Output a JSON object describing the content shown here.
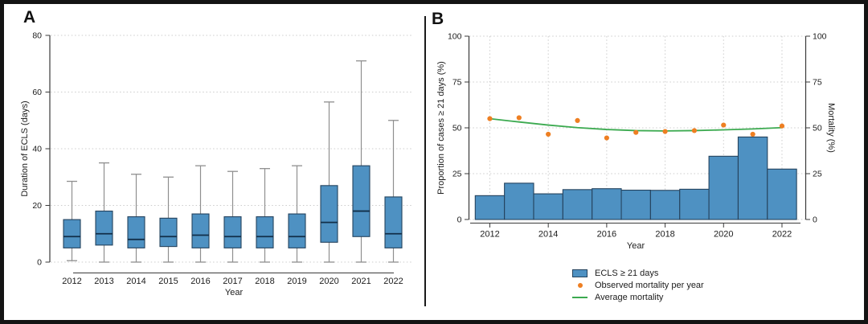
{
  "panels": {
    "a_label": "A",
    "b_label": "B"
  },
  "colors": {
    "bar_fill": "#4e91c2",
    "box_border": "#25435e",
    "median_line": "#122f49",
    "whisker_gray": "#8f8f8f",
    "grid_gray": "#cccccc",
    "axis_dark": "#3a3a3a",
    "text_dark": "#1c1c1c",
    "scatter_orange": "#ee7f22",
    "line_green": "#3caa50",
    "border_black": "#141414"
  },
  "chart_data": [
    {
      "id": "A",
      "type": "boxplot",
      "xlabel": "Year",
      "ylabel": "Duration of ECLS (days)",
      "ylim": [
        0,
        80
      ],
      "yticks": [
        0,
        20,
        40,
        60,
        80
      ],
      "grid": "horizontal-dotted",
      "categories": [
        2012,
        2013,
        2014,
        2015,
        2016,
        2017,
        2018,
        2019,
        2020,
        2021,
        2022
      ],
      "series": [
        {
          "name": "Duration of ECLS (days)",
          "boxes": [
            {
              "year": 2012,
              "low": 0.5,
              "q1": 5,
              "median": 9,
              "q3": 15,
              "high": 28.5
            },
            {
              "year": 2013,
              "low": 0,
              "q1": 6,
              "median": 10,
              "q3": 18,
              "high": 35
            },
            {
              "year": 2014,
              "low": 0,
              "q1": 5,
              "median": 8,
              "q3": 16,
              "high": 31
            },
            {
              "year": 2015,
              "low": 0,
              "q1": 5.5,
              "median": 9,
              "q3": 15.5,
              "high": 30
            },
            {
              "year": 2016,
              "low": 0,
              "q1": 5,
              "median": 9.5,
              "q3": 17,
              "high": 34
            },
            {
              "year": 2017,
              "low": 0,
              "q1": 5,
              "median": 9,
              "q3": 16,
              "high": 32
            },
            {
              "year": 2018,
              "low": 0,
              "q1": 5,
              "median": 9,
              "q3": 16,
              "high": 33
            },
            {
              "year": 2019,
              "low": 0,
              "q1": 5,
              "median": 9,
              "q3": 17,
              "high": 34
            },
            {
              "year": 2020,
              "low": 0,
              "q1": 7,
              "median": 14,
              "q3": 27,
              "high": 56.5
            },
            {
              "year": 2021,
              "low": 0,
              "q1": 9,
              "median": 18,
              "q3": 34,
              "high": 71
            },
            {
              "year": 2022,
              "low": 0,
              "q1": 5,
              "median": 10,
              "q3": 23,
              "high": 50
            }
          ]
        }
      ]
    },
    {
      "id": "B",
      "type": "bar+scatter+line",
      "xlabel": "Year",
      "ylabel_left": "Proportion of cases ≥ 21 days (%)",
      "ylabel_right": "Mortality (%)",
      "ylim": [
        0,
        100
      ],
      "yticks": [
        0,
        25,
        50,
        75,
        100
      ],
      "xticks": [
        2012,
        2014,
        2016,
        2018,
        2020,
        2022
      ],
      "grid": "both-dotted",
      "legend_position": "bottom",
      "categories": [
        2012,
        2013,
        2014,
        2015,
        2016,
        2017,
        2018,
        2019,
        2020,
        2021,
        2022
      ],
      "bars": {
        "name": "ECLS ≥ 21 days",
        "values": [
          13,
          19.8,
          14,
          16.3,
          16.8,
          16,
          15.9,
          16.5,
          34.5,
          45,
          27.5
        ]
      },
      "scatter": {
        "name": "Observed mortality per year",
        "values": [
          55,
          55.5,
          46.5,
          54,
          44.5,
          47.5,
          48,
          48.5,
          51.5,
          46.5,
          51
        ]
      },
      "line": {
        "name": "Average mortality",
        "values": [
          55,
          53.2,
          51.5,
          50.1,
          49.1,
          48.5,
          48.3,
          48.5,
          48.9,
          49.4,
          50.1
        ]
      }
    }
  ]
}
